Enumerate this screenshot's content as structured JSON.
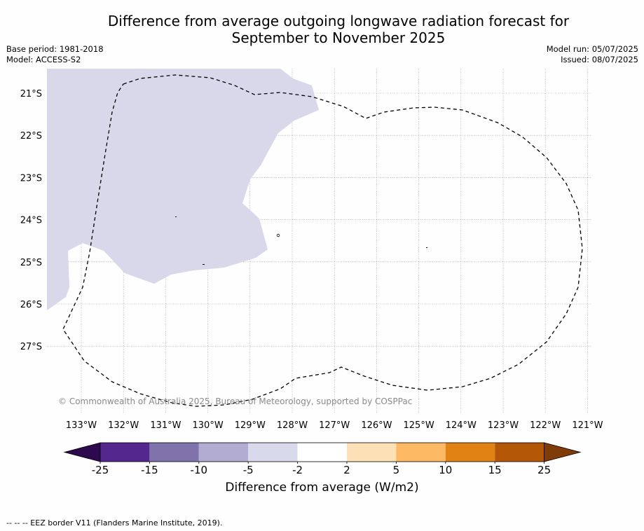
{
  "header": {
    "title_line1": "Difference from average outgoing longwave radiation forecast for",
    "title_line2": "September to November 2025",
    "base_period": "Base period: 1981-2018",
    "model": "Model: ACCESS-S2",
    "model_run": "Model run: 05/07/2025",
    "issued": "Issued: 08/07/2025"
  },
  "map": {
    "lat_labels": [
      "21°S",
      "22°S",
      "23°S",
      "24°S",
      "25°S",
      "26°S",
      "27°S"
    ],
    "lon_labels": [
      "133°W",
      "132°W",
      "131°W",
      "130°W",
      "129°W",
      "128°W",
      "127°W",
      "126°W",
      "125°W",
      "124°W",
      "123°W",
      "122°W",
      "121°W"
    ],
    "copyright": "© Commonwealth of Australia 2025, Bureau of Meteorology, supported by COSPPac",
    "fill_color": "#d8d8ea",
    "border_style": "dashed"
  },
  "colorbar": {
    "tick_labels": [
      "-25",
      "-15",
      "-10",
      "-5",
      "-2",
      "2",
      "5",
      "10",
      "15",
      "25"
    ],
    "colors": [
      "#2d0a4e",
      "#54278f",
      "#8073ac",
      "#b2abd2",
      "#d8daeb",
      "#ffffff",
      "#fee0b6",
      "#fdb863",
      "#e08214",
      "#b35806",
      "#7f3b08"
    ],
    "label": "Difference from average (W/m2)"
  },
  "footnote": "--  --  -- EEZ border V11 (Flanders Marine Institute, 2019)."
}
